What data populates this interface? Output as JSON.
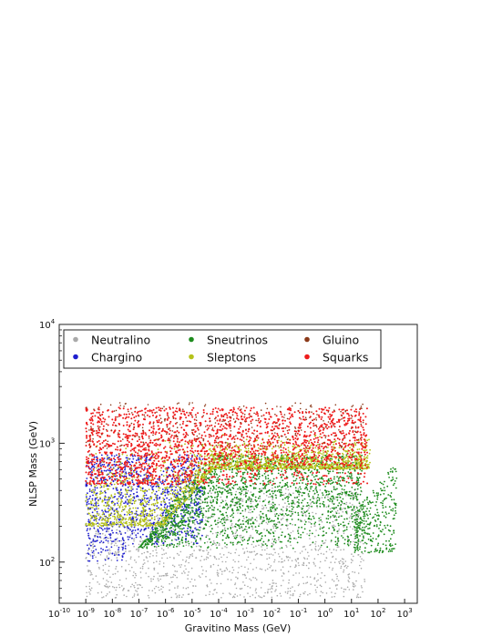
{
  "chart_data": {
    "type": "scatter",
    "title": "",
    "xlabel": "Gravitino Mass (GeV)",
    "ylabel": "NLSP Mass (GeV)",
    "xscale": "log",
    "yscale": "log",
    "xlim": [
      1e-10,
      3000.0
    ],
    "ylim": [
      45,
      10000
    ],
    "x_ticks": [
      {
        "base": "10",
        "exp": "-10",
        "value": 1e-10
      },
      {
        "base": "10",
        "exp": "-9",
        "value": 1e-09
      },
      {
        "base": "10",
        "exp": "-8",
        "value": 1e-08
      },
      {
        "base": "10",
        "exp": "-7",
        "value": 1e-07
      },
      {
        "base": "10",
        "exp": "-6",
        "value": 1e-06
      },
      {
        "base": "10",
        "exp": "-5",
        "value": 1e-05
      },
      {
        "base": "10",
        "exp": "-4",
        "value": 0.0001
      },
      {
        "base": "10",
        "exp": "-3",
        "value": 0.001
      },
      {
        "base": "10",
        "exp": "-2",
        "value": 0.01
      },
      {
        "base": "10",
        "exp": "-1",
        "value": 0.1
      },
      {
        "base": "10",
        "exp": "0",
        "value": 1
      },
      {
        "base": "10",
        "exp": "1",
        "value": 10
      },
      {
        "base": "10",
        "exp": "2",
        "value": 100
      },
      {
        "base": "10",
        "exp": "3",
        "value": 1000
      }
    ],
    "y_ticks": [
      {
        "base": "10",
        "exp": "2",
        "value": 100
      },
      {
        "base": "10",
        "exp": "3",
        "value": 1000
      },
      {
        "base": "10",
        "exp": "4",
        "value": 10000
      }
    ],
    "legend_position": "top",
    "grid": false,
    "series": [
      {
        "name": "Neutralino",
        "color": "#a9a9a9",
        "region": {
          "x_range": [
            1e-09,
            30
          ],
          "y_range": [
            50,
            700
          ]
        }
      },
      {
        "name": "Chargino",
        "color": "#1f1fcf",
        "region": {
          "x_range": [
            1e-09,
            3e-05
          ],
          "y_range": [
            100,
            1000
          ]
        }
      },
      {
        "name": "Sneutrinos",
        "color": "#1e8c1e",
        "region": {
          "x_range": [
            1e-07,
            600
          ],
          "y_range": [
            120,
            900
          ]
        }
      },
      {
        "name": "Sleptons",
        "color": "#b5c21a",
        "region": {
          "x_range": [
            1e-09,
            50
          ],
          "y_range": [
            150,
            1500
          ]
        }
      },
      {
        "name": "Gluino",
        "color": "#8b3a1a",
        "region": {
          "x_range": [
            1e-09,
            30
          ],
          "y_range": [
            900,
            2200
          ]
        }
      },
      {
        "name": "Squarks",
        "color": "#ee1c1c",
        "region": {
          "x_range": [
            1e-09,
            30
          ],
          "y_range": [
            450,
            2200
          ]
        }
      }
    ]
  }
}
